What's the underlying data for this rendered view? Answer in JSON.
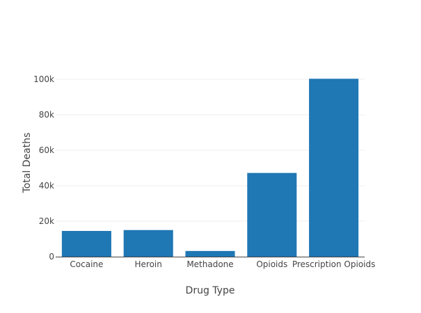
{
  "chart_data": {
    "type": "bar",
    "title": "",
    "xlabel": "Drug Type",
    "ylabel": "Total Deaths",
    "categories": [
      "Cocaine",
      "Heroin",
      "Methadone",
      "Opioids",
      "Prescription Opioids"
    ],
    "values": [
      14500,
      15000,
      3200,
      47200,
      100300
    ],
    "ylim": [
      0,
      100000
    ],
    "yticks": [
      0,
      20000,
      40000,
      60000,
      80000,
      100000
    ],
    "ytick_labels": [
      "0",
      "20k",
      "40k",
      "60k",
      "80k",
      "100k"
    ],
    "grid": true,
    "legend": "none",
    "colors": {
      "bar": "#1f77b4",
      "grid": "#eeeeee",
      "axis": "#444444",
      "text": "#444444"
    }
  }
}
